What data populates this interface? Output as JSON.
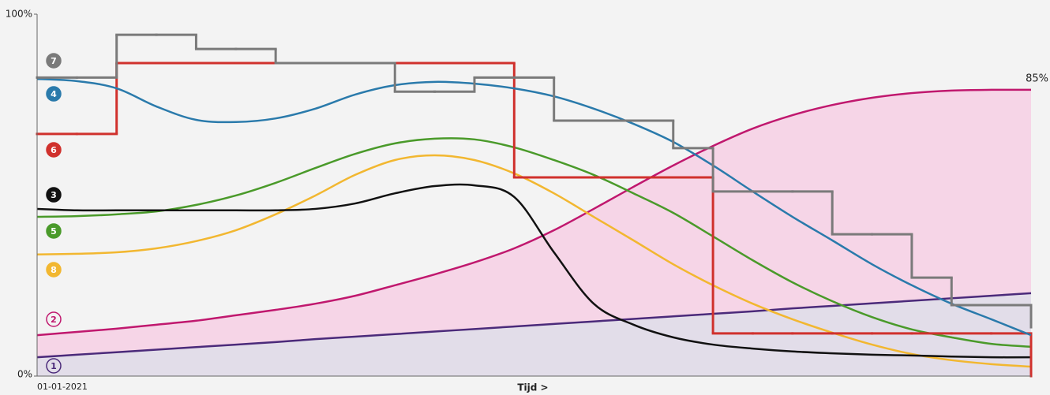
{
  "chart_data": {
    "type": "line",
    "x_label": "Tijd >",
    "categories": [
      "01-01-2021",
      null,
      null,
      null,
      null,
      null,
      null,
      null,
      null,
      null,
      null,
      null,
      null,
      null,
      null,
      null,
      null,
      null,
      null,
      null,
      null,
      null,
      null,
      null,
      null,
      null
    ],
    "ylim": [
      0,
      100
    ],
    "yticks": [
      {
        "value": 0,
        "label": "0%"
      },
      {
        "value": 100,
        "label": "100%"
      }
    ],
    "annotation": "85%",
    "annotation_series": 6,
    "series": [
      {
        "name": "7",
        "color": "#7a7a7a",
        "style": "step",
        "marker": "filled",
        "values": [
          82.5,
          82.5,
          94.3,
          94.3,
          90.4,
          90.4,
          86.5,
          86.5,
          86.5,
          78.6,
          78.6,
          82.5,
          82.5,
          70.6,
          70.6,
          70.6,
          63,
          51,
          51,
          51,
          39.2,
          39.2,
          27.2,
          19.6,
          19.6,
          13.5
        ]
      },
      {
        "name": "4",
        "color": "#2a7aab",
        "style": "curve",
        "marker": "filled",
        "values": [
          82.1,
          81.5,
          79.5,
          74.5,
          70.8,
          70.2,
          71.2,
          73.9,
          77.8,
          80.4,
          81.3,
          80.8,
          79.5,
          77.3,
          73.9,
          69.7,
          64.7,
          58.2,
          51,
          44,
          37.5,
          30.9,
          25.1,
          20,
          15.7,
          11.3
        ]
      },
      {
        "name": "6",
        "color": "#d0312d",
        "style": "step",
        "marker": "filled",
        "values": [
          66.9,
          66.9,
          86.5,
          86.5,
          86.5,
          86.5,
          86.5,
          86.5,
          86.5,
          86.5,
          86.5,
          86.5,
          54.9,
          54.9,
          54.9,
          54.9,
          54.9,
          11.8,
          11.8,
          11.8,
          11.8,
          11.8,
          11.8,
          11.8,
          11.8,
          0
        ]
      },
      {
        "name": "3",
        "color": "#111111",
        "style": "curve",
        "marker": "filled",
        "values": [
          46.2,
          45.8,
          45.8,
          45.8,
          45.8,
          45.8,
          45.8,
          46.2,
          47.7,
          50.5,
          52.5,
          52.7,
          49.5,
          34.2,
          20,
          14.2,
          10.7,
          8.7,
          7.6,
          6.8,
          6.3,
          5.9,
          5.7,
          5.4,
          5.2,
          5.2
        ]
      },
      {
        "name": "5",
        "color": "#4a9a2a",
        "style": "curve",
        "marker": "filled",
        "values": [
          44,
          44.2,
          44.7,
          45.5,
          47.3,
          49.9,
          53.4,
          57.5,
          61.4,
          64.3,
          65.6,
          65.4,
          63.2,
          59.7,
          55.6,
          50.5,
          45.1,
          38.6,
          32,
          25.9,
          20.7,
          16.3,
          12.9,
          10.7,
          8.9,
          8.1
        ]
      },
      {
        "name": "8",
        "color": "#f2b730",
        "style": "curve",
        "marker": "filled",
        "values": [
          33.6,
          33.8,
          34.2,
          35.3,
          37.3,
          40.3,
          44.7,
          49.9,
          55.6,
          59.7,
          61,
          59.7,
          56,
          50.5,
          44,
          37.5,
          30.9,
          25.1,
          20,
          15.7,
          12,
          8.7,
          6.1,
          4.4,
          3.3,
          2.6
        ]
      },
      {
        "name": "2",
        "color": "#c0186e",
        "style": "curve",
        "marker": "outline",
        "fill": "#f6d5e7",
        "values": [
          11.3,
          12.2,
          13.1,
          14.2,
          15.3,
          16.8,
          18.3,
          20,
          22.2,
          25.1,
          28.1,
          31.4,
          35.3,
          40.3,
          46.2,
          52.3,
          58.2,
          63.6,
          68.4,
          72.1,
          74.9,
          76.9,
          78.2,
          78.9,
          79.1,
          79.1
        ]
      },
      {
        "name": "1",
        "color": "#4b2a7a",
        "style": "curve",
        "marker": "outline",
        "fill": "#e2dde9",
        "values": [
          5.2,
          5.9,
          6.6,
          7.3,
          8.0,
          8.7,
          9.4,
          10.2,
          10.9,
          11.6,
          12.3,
          13.0,
          13.7,
          14.4,
          15.1,
          15.8,
          16.5,
          17.2,
          17.9,
          18.7,
          19.4,
          20.1,
          20.8,
          21.5,
          22.2,
          22.9
        ]
      }
    ]
  }
}
